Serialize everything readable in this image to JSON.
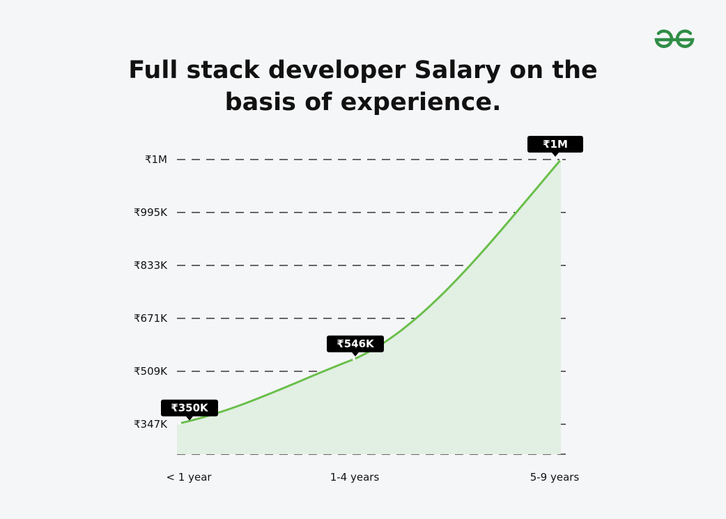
{
  "brand": {
    "accent": "#2f8d46",
    "logo_icon": "gfg-logo-icon"
  },
  "chart_data": {
    "type": "area",
    "title_lines": [
      "Full stack developer Salary  on the",
      "basis of experience."
    ],
    "categories": [
      "< 1 year",
      "1-4 years",
      "5-9 years"
    ],
    "series": [
      {
        "values": [
          350000,
          546000,
          1000000
        ],
        "data_labels": [
          "₹350K",
          "₹546K",
          "₹1M"
        ]
      }
    ],
    "y_ticks": [
      {
        "value": 347000,
        "label": "₹347K"
      },
      {
        "value": 509000,
        "label": "₹509K"
      },
      {
        "value": 671000,
        "label": "₹671K"
      },
      {
        "value": 833000,
        "label": "₹833K"
      },
      {
        "value": 995000,
        "label": "₹995K"
      },
      {
        "value": 1000000,
        "label": "₹1M"
      }
    ],
    "grid": "dashed horizontal",
    "colors": {
      "line": "#6abf4b",
      "fill": "#e2efe3",
      "label_bg": "#000000",
      "grid": "#111111"
    }
  }
}
